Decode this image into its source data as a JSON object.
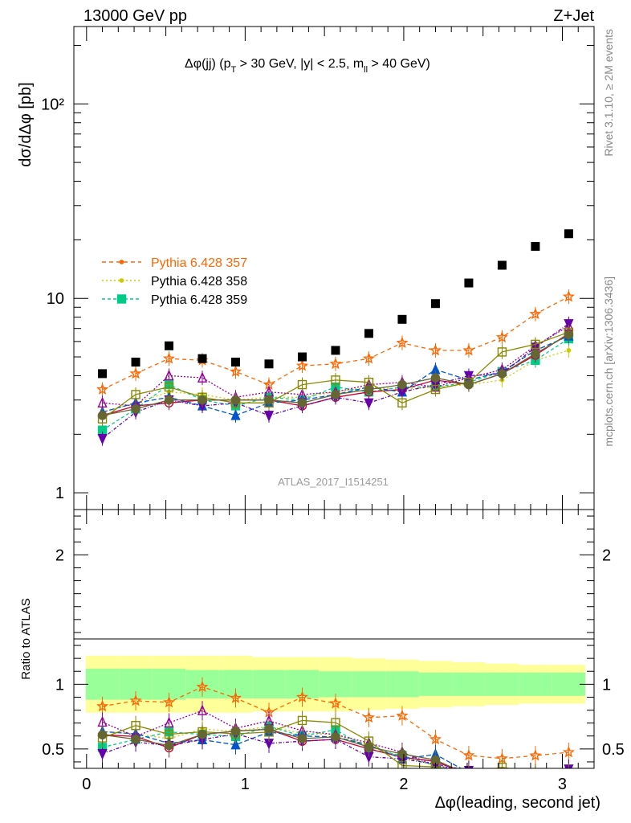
{
  "header": {
    "energy_label": "13000 GeV pp",
    "process_label": "Z+Jet",
    "plot_title": "Δφ(jj) (p_T > 30 GeV, |y| < 2.5, m_ll > 40 GeV)",
    "side_top": "Rivet 3.1.10, ≥ 2M events",
    "side_bottom": "mcplots.cern.ch [arXiv:1306.3436]",
    "watermark": "ATLAS_2017_I1514251"
  },
  "chart_data": {
    "type": "scatter",
    "xlabel": "Δφ(leading, second jet)",
    "ylabel_main": "dσ/dΔφ [pb]",
    "ylabel_ratio": "Ratio to ATLAS",
    "xlim": [
      -0.08,
      3.2
    ],
    "ylim_main": [
      0.82,
      250
    ],
    "ylim_ratio": [
      0.35,
      2.35
    ],
    "yscale_main": "log",
    "x_ticks": [
      "0",
      "1",
      "2",
      "3"
    ],
    "y_ticks_main": [
      "1",
      "10",
      "10²"
    ],
    "y_ticks_ratio": [
      "0.5",
      "1",
      "2"
    ],
    "x": [
      0.1,
      0.31,
      0.52,
      0.73,
      0.94,
      1.15,
      1.36,
      1.57,
      1.78,
      1.99,
      2.2,
      2.41,
      2.62,
      2.83,
      3.04
    ],
    "data": [
      4.1,
      4.7,
      5.7,
      4.9,
      4.7,
      4.6,
      5.0,
      5.4,
      6.6,
      7.8,
      9.4,
      12.0,
      14.8,
      18.5,
      21.5
    ],
    "band_inner": [
      0.12,
      0.12,
      0.12,
      0.11,
      0.11,
      0.11,
      0.11,
      0.1,
      0.1,
      0.1,
      0.09,
      0.09,
      0.09,
      0.09,
      0.09
    ],
    "band_outer": [
      0.22,
      0.22,
      0.22,
      0.22,
      0.22,
      0.21,
      0.21,
      0.21,
      0.2,
      0.19,
      0.18,
      0.17,
      0.16,
      0.15,
      0.15
    ],
    "legend": [
      "Pythia 6.428 357",
      "Pythia 6.428 358",
      "Pythia 6.428 359"
    ],
    "legend_position": "left-middle",
    "series": [
      {
        "name": "Pythia 6.428 357",
        "color": "#ff6600",
        "dash": "5,4",
        "marker": "star",
        "values": [
          3.4,
          4.1,
          4.9,
          4.8,
          4.2,
          3.6,
          4.5,
          4.6,
          4.9,
          5.9,
          5.4,
          5.4,
          6.3,
          8.3,
          10.2
        ]
      },
      {
        "name": "Pythia 6.428 358",
        "color": "#cccc00",
        "dash": "2,3",
        "marker": "dot",
        "values": [
          2.6,
          2.9,
          3.3,
          3.2,
          3.0,
          3.1,
          3.1,
          3.3,
          3.5,
          3.4,
          3.5,
          3.6,
          3.8,
          4.8,
          5.4
        ]
      },
      {
        "name": "Pythia 6.428 359",
        "color": "#00cc88",
        "dash": "4,3",
        "marker": "square",
        "values": [
          2.1,
          2.7,
          3.6,
          3.0,
          2.8,
          3.1,
          3.0,
          3.5,
          3.3,
          3.5,
          3.5,
          3.7,
          4.2,
          4.8,
          6.2
        ]
      },
      {
        "color": "#cc0033",
        "dash": "",
        "marker": "circle-open",
        "values": [
          2.5,
          2.8,
          2.9,
          3.0,
          3.0,
          3.0,
          2.8,
          3.1,
          3.3,
          3.4,
          3.8,
          3.6,
          4.1,
          5.1,
          6.6
        ]
      },
      {
        "color": "#0055cc",
        "dash": "6,3",
        "marker": "triangle",
        "values": [
          2.6,
          2.9,
          3.1,
          2.8,
          2.5,
          2.9,
          3.0,
          3.2,
          3.5,
          3.3,
          4.3,
          3.8,
          4.2,
          5.4,
          6.4
        ]
      },
      {
        "color": "#990099",
        "dash": "2,2",
        "marker": "triangle-open",
        "values": [
          2.9,
          2.8,
          4.0,
          3.9,
          3.1,
          3.3,
          3.2,
          3.3,
          3.6,
          3.7,
          3.5,
          3.9,
          4.3,
          5.7,
          7.2
        ]
      },
      {
        "color": "#6600aa",
        "dash": "4,2,1,2",
        "marker": "triangle-down",
        "values": [
          1.9,
          2.6,
          3.0,
          2.8,
          2.9,
          2.5,
          2.8,
          3.1,
          2.9,
          3.3,
          3.6,
          4.0,
          4.1,
          5.6,
          7.4
        ]
      },
      {
        "color": "#888800",
        "dash": "",
        "marker": "square-open",
        "values": [
          2.4,
          3.2,
          3.5,
          3.1,
          2.9,
          2.9,
          3.6,
          3.8,
          3.7,
          2.9,
          3.4,
          3.7,
          5.3,
          5.8,
          6.7
        ]
      },
      {
        "color": "#666633",
        "dash": "",
        "marker": "circle",
        "values": [
          2.5,
          2.7,
          3.0,
          3.0,
          3.0,
          3.0,
          2.9,
          3.2,
          3.4,
          3.6,
          3.9,
          3.6,
          4.1,
          5.2,
          6.5
        ]
      }
    ]
  }
}
